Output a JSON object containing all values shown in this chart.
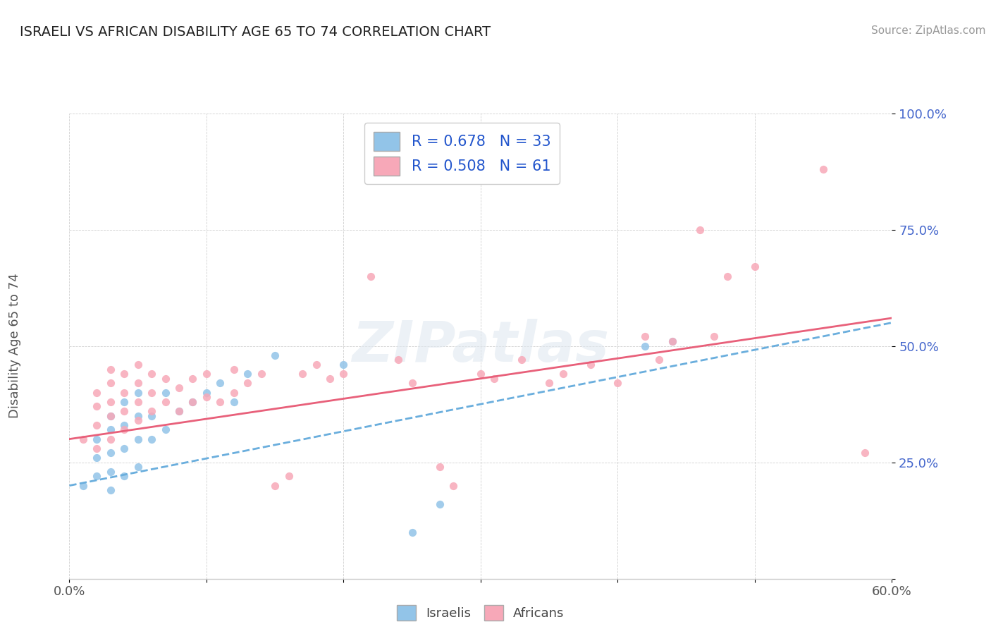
{
  "title": "ISRAELI VS AFRICAN DISABILITY AGE 65 TO 74 CORRELATION CHART",
  "source": "Source: ZipAtlas.com",
  "ylabel": "Disability Age 65 to 74",
  "xlim": [
    0.0,
    0.6
  ],
  "ylim": [
    0.0,
    1.0
  ],
  "yticks": [
    0.0,
    0.25,
    0.5,
    0.75,
    1.0
  ],
  "ytick_labels": [
    "",
    "25.0%",
    "50.0%",
    "75.0%",
    "100.0%"
  ],
  "xticks": [
    0.0,
    0.1,
    0.2,
    0.3,
    0.4,
    0.5,
    0.6
  ],
  "xtick_labels": [
    "0.0%",
    "",
    "",
    "",
    "",
    "",
    "60.0%"
  ],
  "israeli_color": "#92c4e8",
  "african_color": "#f7a8b8",
  "israeli_line_color": "#6aaedd",
  "african_line_color": "#e8607a",
  "R_israeli": 0.678,
  "N_israeli": 33,
  "R_african": 0.508,
  "N_african": 61,
  "legend_label_color": "#2255cc",
  "background_color": "#ffffff",
  "watermark": "ZIPatlas",
  "grid_color": "#d0d0d0",
  "israeli_points": [
    [
      0.01,
      0.2
    ],
    [
      0.02,
      0.22
    ],
    [
      0.02,
      0.26
    ],
    [
      0.02,
      0.3
    ],
    [
      0.03,
      0.19
    ],
    [
      0.03,
      0.23
    ],
    [
      0.03,
      0.27
    ],
    [
      0.03,
      0.32
    ],
    [
      0.03,
      0.35
    ],
    [
      0.04,
      0.22
    ],
    [
      0.04,
      0.28
    ],
    [
      0.04,
      0.33
    ],
    [
      0.04,
      0.38
    ],
    [
      0.05,
      0.24
    ],
    [
      0.05,
      0.3
    ],
    [
      0.05,
      0.35
    ],
    [
      0.05,
      0.4
    ],
    [
      0.06,
      0.3
    ],
    [
      0.06,
      0.35
    ],
    [
      0.07,
      0.32
    ],
    [
      0.07,
      0.4
    ],
    [
      0.08,
      0.36
    ],
    [
      0.09,
      0.38
    ],
    [
      0.1,
      0.4
    ],
    [
      0.11,
      0.42
    ],
    [
      0.12,
      0.38
    ],
    [
      0.13,
      0.44
    ],
    [
      0.15,
      0.48
    ],
    [
      0.2,
      0.46
    ],
    [
      0.25,
      0.1
    ],
    [
      0.27,
      0.16
    ],
    [
      0.42,
      0.5
    ],
    [
      0.44,
      0.51
    ]
  ],
  "african_points": [
    [
      0.01,
      0.3
    ],
    [
      0.02,
      0.28
    ],
    [
      0.02,
      0.33
    ],
    [
      0.02,
      0.37
    ],
    [
      0.02,
      0.4
    ],
    [
      0.03,
      0.3
    ],
    [
      0.03,
      0.35
    ],
    [
      0.03,
      0.38
    ],
    [
      0.03,
      0.42
    ],
    [
      0.03,
      0.45
    ],
    [
      0.04,
      0.32
    ],
    [
      0.04,
      0.36
    ],
    [
      0.04,
      0.4
    ],
    [
      0.04,
      0.44
    ],
    [
      0.05,
      0.34
    ],
    [
      0.05,
      0.38
    ],
    [
      0.05,
      0.42
    ],
    [
      0.05,
      0.46
    ],
    [
      0.06,
      0.36
    ],
    [
      0.06,
      0.4
    ],
    [
      0.06,
      0.44
    ],
    [
      0.07,
      0.38
    ],
    [
      0.07,
      0.43
    ],
    [
      0.08,
      0.36
    ],
    [
      0.08,
      0.41
    ],
    [
      0.09,
      0.38
    ],
    [
      0.09,
      0.43
    ],
    [
      0.1,
      0.39
    ],
    [
      0.1,
      0.44
    ],
    [
      0.11,
      0.38
    ],
    [
      0.12,
      0.4
    ],
    [
      0.12,
      0.45
    ],
    [
      0.13,
      0.42
    ],
    [
      0.14,
      0.44
    ],
    [
      0.15,
      0.2
    ],
    [
      0.16,
      0.22
    ],
    [
      0.17,
      0.44
    ],
    [
      0.18,
      0.46
    ],
    [
      0.19,
      0.43
    ],
    [
      0.2,
      0.44
    ],
    [
      0.22,
      0.65
    ],
    [
      0.24,
      0.47
    ],
    [
      0.25,
      0.42
    ],
    [
      0.27,
      0.24
    ],
    [
      0.28,
      0.2
    ],
    [
      0.3,
      0.44
    ],
    [
      0.31,
      0.43
    ],
    [
      0.33,
      0.47
    ],
    [
      0.35,
      0.42
    ],
    [
      0.36,
      0.44
    ],
    [
      0.38,
      0.46
    ],
    [
      0.4,
      0.42
    ],
    [
      0.42,
      0.52
    ],
    [
      0.43,
      0.47
    ],
    [
      0.44,
      0.51
    ],
    [
      0.46,
      0.75
    ],
    [
      0.47,
      0.52
    ],
    [
      0.48,
      0.65
    ],
    [
      0.5,
      0.67
    ],
    [
      0.55,
      0.88
    ],
    [
      0.58,
      0.27
    ]
  ],
  "israeli_line": {
    "x0": 0.0,
    "y0": 0.2,
    "x1": 0.6,
    "y1": 0.55
  },
  "african_line": {
    "x0": 0.0,
    "y0": 0.3,
    "x1": 0.6,
    "y1": 0.56
  }
}
